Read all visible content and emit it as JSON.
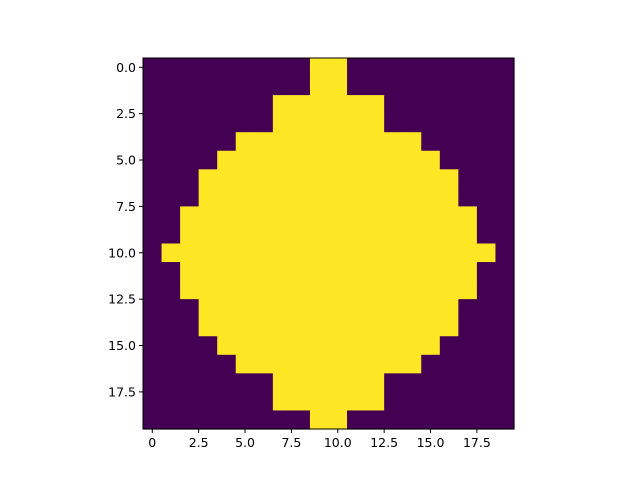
{
  "chart_data": {
    "type": "heatmap",
    "title": "",
    "xlabel": "",
    "ylabel": "",
    "rows": 20,
    "cols": 20,
    "xlim": [
      -0.5,
      19.5
    ],
    "ylim": [
      19.5,
      -0.5
    ],
    "grid": false,
    "colormap": "viridis",
    "colors": {
      "low": "#440154",
      "high": "#fde725"
    },
    "row_spans": [
      [
        9,
        10
      ],
      [
        9,
        10
      ],
      [
        7,
        12
      ],
      [
        7,
        12
      ],
      [
        5,
        14
      ],
      [
        4,
        15
      ],
      [
        3,
        16
      ],
      [
        3,
        16
      ],
      [
        2,
        17
      ],
      [
        2,
        17
      ],
      [
        1,
        18
      ],
      [
        2,
        17
      ],
      [
        2,
        17
      ],
      [
        3,
        16
      ],
      [
        3,
        16
      ],
      [
        4,
        15
      ],
      [
        5,
        14
      ],
      [
        7,
        12
      ],
      [
        7,
        12
      ],
      [
        9,
        10
      ]
    ],
    "x_ticks": [
      0.0,
      2.5,
      5.0,
      7.5,
      10.0,
      12.5,
      15.0,
      17.5
    ],
    "x_tick_labels": [
      "0",
      "2.5",
      "5.0",
      "7.5",
      "10.0",
      "12.5",
      "15.0",
      "17.5"
    ],
    "y_ticks": [
      0.0,
      2.5,
      5.0,
      7.5,
      10.0,
      12.5,
      15.0,
      17.5
    ],
    "y_tick_labels": [
      "0.0",
      "2.5",
      "5.0",
      "7.5",
      "10.0",
      "12.5",
      "15.0",
      "17.5"
    ]
  }
}
